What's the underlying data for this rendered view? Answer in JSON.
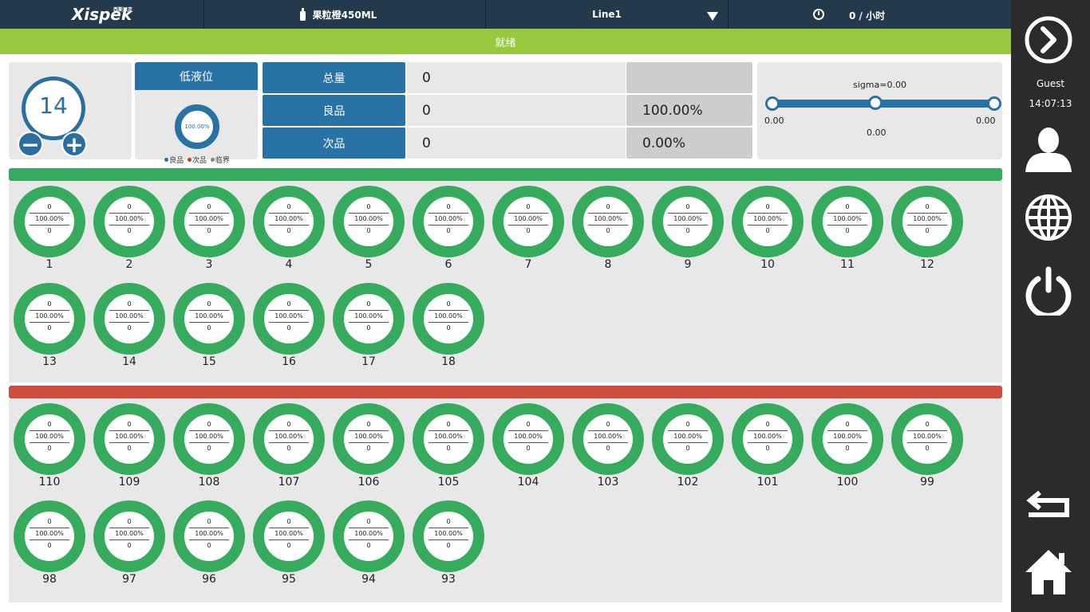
{
  "topbar": {
    "logo": "Xispek",
    "logo_sub": "西斯派克",
    "product": "果粒橙450ML",
    "line": "Line1",
    "rate": "0 / 小时"
  },
  "status": "就绪",
  "reject_counter": {
    "value": "14",
    "minus": "−",
    "plus": "+"
  },
  "low_level": {
    "title": "低液位",
    "percent": "100.00%",
    "legend": [
      {
        "label": "良品",
        "color": "#2872a6"
      },
      {
        "label": "次品",
        "color": "#c0392b"
      },
      {
        "label": "临界",
        "color": "#888888"
      }
    ]
  },
  "stats": [
    {
      "label": "总量",
      "value": "0",
      "pct": ""
    },
    {
      "label": "良品",
      "value": "0",
      "pct": "100.00%"
    },
    {
      "label": "次品",
      "value": "0",
      "pct": "0.00%"
    }
  ],
  "sigma": {
    "title": "sigma=0.00",
    "left": "0.00",
    "mid": "0.00",
    "right": "0.00"
  },
  "good_valves": [
    {
      "id": "1",
      "top": "0",
      "pct": "100.00%",
      "bottom": "0"
    },
    {
      "id": "2",
      "top": "0",
      "pct": "100.00%",
      "bottom": "0"
    },
    {
      "id": "3",
      "top": "0",
      "pct": "100.00%",
      "bottom": "0"
    },
    {
      "id": "4",
      "top": "0",
      "pct": "100.00%",
      "bottom": "0"
    },
    {
      "id": "5",
      "top": "0",
      "pct": "100.00%",
      "bottom": "0"
    },
    {
      "id": "6",
      "top": "0",
      "pct": "100.00%",
      "bottom": "0"
    },
    {
      "id": "7",
      "top": "0",
      "pct": "100.00%",
      "bottom": "0"
    },
    {
      "id": "8",
      "top": "0",
      "pct": "100.00%",
      "bottom": "0"
    },
    {
      "id": "9",
      "top": "0",
      "pct": "100.00%",
      "bottom": "0"
    },
    {
      "id": "10",
      "top": "0",
      "pct": "100.00%",
      "bottom": "0"
    },
    {
      "id": "11",
      "top": "0",
      "pct": "100.00%",
      "bottom": "0"
    },
    {
      "id": "12",
      "top": "0",
      "pct": "100.00%",
      "bottom": "0"
    },
    {
      "id": "13",
      "top": "0",
      "pct": "100.00%",
      "bottom": "0"
    },
    {
      "id": "14",
      "top": "0",
      "pct": "100.00%",
      "bottom": "0"
    },
    {
      "id": "15",
      "top": "0",
      "pct": "100.00%",
      "bottom": "0"
    },
    {
      "id": "16",
      "top": "0",
      "pct": "100.00%",
      "bottom": "0"
    },
    {
      "id": "17",
      "top": "0",
      "pct": "100.00%",
      "bottom": "0"
    },
    {
      "id": "18",
      "top": "0",
      "pct": "100.00%",
      "bottom": "0"
    }
  ],
  "bad_valves": [
    {
      "id": "110",
      "top": "0",
      "pct": "100.00%",
      "bottom": "0"
    },
    {
      "id": "109",
      "top": "0",
      "pct": "100.00%",
      "bottom": "0"
    },
    {
      "id": "108",
      "top": "0",
      "pct": "100.00%",
      "bottom": "0"
    },
    {
      "id": "107",
      "top": "0",
      "pct": "100.00%",
      "bottom": "0"
    },
    {
      "id": "106",
      "top": "0",
      "pct": "100.00%",
      "bottom": "0"
    },
    {
      "id": "105",
      "top": "0",
      "pct": "100.00%",
      "bottom": "0"
    },
    {
      "id": "104",
      "top": "0",
      "pct": "100.00%",
      "bottom": "0"
    },
    {
      "id": "103",
      "top": "0",
      "pct": "100.00%",
      "bottom": "0"
    },
    {
      "id": "102",
      "top": "0",
      "pct": "100.00%",
      "bottom": "0"
    },
    {
      "id": "101",
      "top": "0",
      "pct": "100.00%",
      "bottom": "0"
    },
    {
      "id": "100",
      "top": "0",
      "pct": "100.00%",
      "bottom": "0"
    },
    {
      "id": "99",
      "top": "0",
      "pct": "100.00%",
      "bottom": "0"
    },
    {
      "id": "98",
      "top": "0",
      "pct": "100.00%",
      "bottom": "0"
    },
    {
      "id": "97",
      "top": "0",
      "pct": "100.00%",
      "bottom": "0"
    },
    {
      "id": "96",
      "top": "0",
      "pct": "100.00%",
      "bottom": "0"
    },
    {
      "id": "95",
      "top": "0",
      "pct": "100.00%",
      "bottom": "0"
    },
    {
      "id": "94",
      "top": "0",
      "pct": "100.00%",
      "bottom": "0"
    },
    {
      "id": "93",
      "top": "0",
      "pct": "100.00%",
      "bottom": "0"
    }
  ],
  "sidebar": {
    "user": "Guest",
    "time": "14:07:13",
    "icons": [
      "forward-icon",
      "user-icon",
      "globe-icon",
      "power-icon",
      "return-icon",
      "home-icon"
    ]
  },
  "colors": {
    "topbar": "#233a4c",
    "status_green": "#96c93d",
    "accent_blue": "#2872a6",
    "valve_green": "#37ab5d",
    "reject_red": "#cc4f3e",
    "sidebar": "#2b2b2b"
  }
}
